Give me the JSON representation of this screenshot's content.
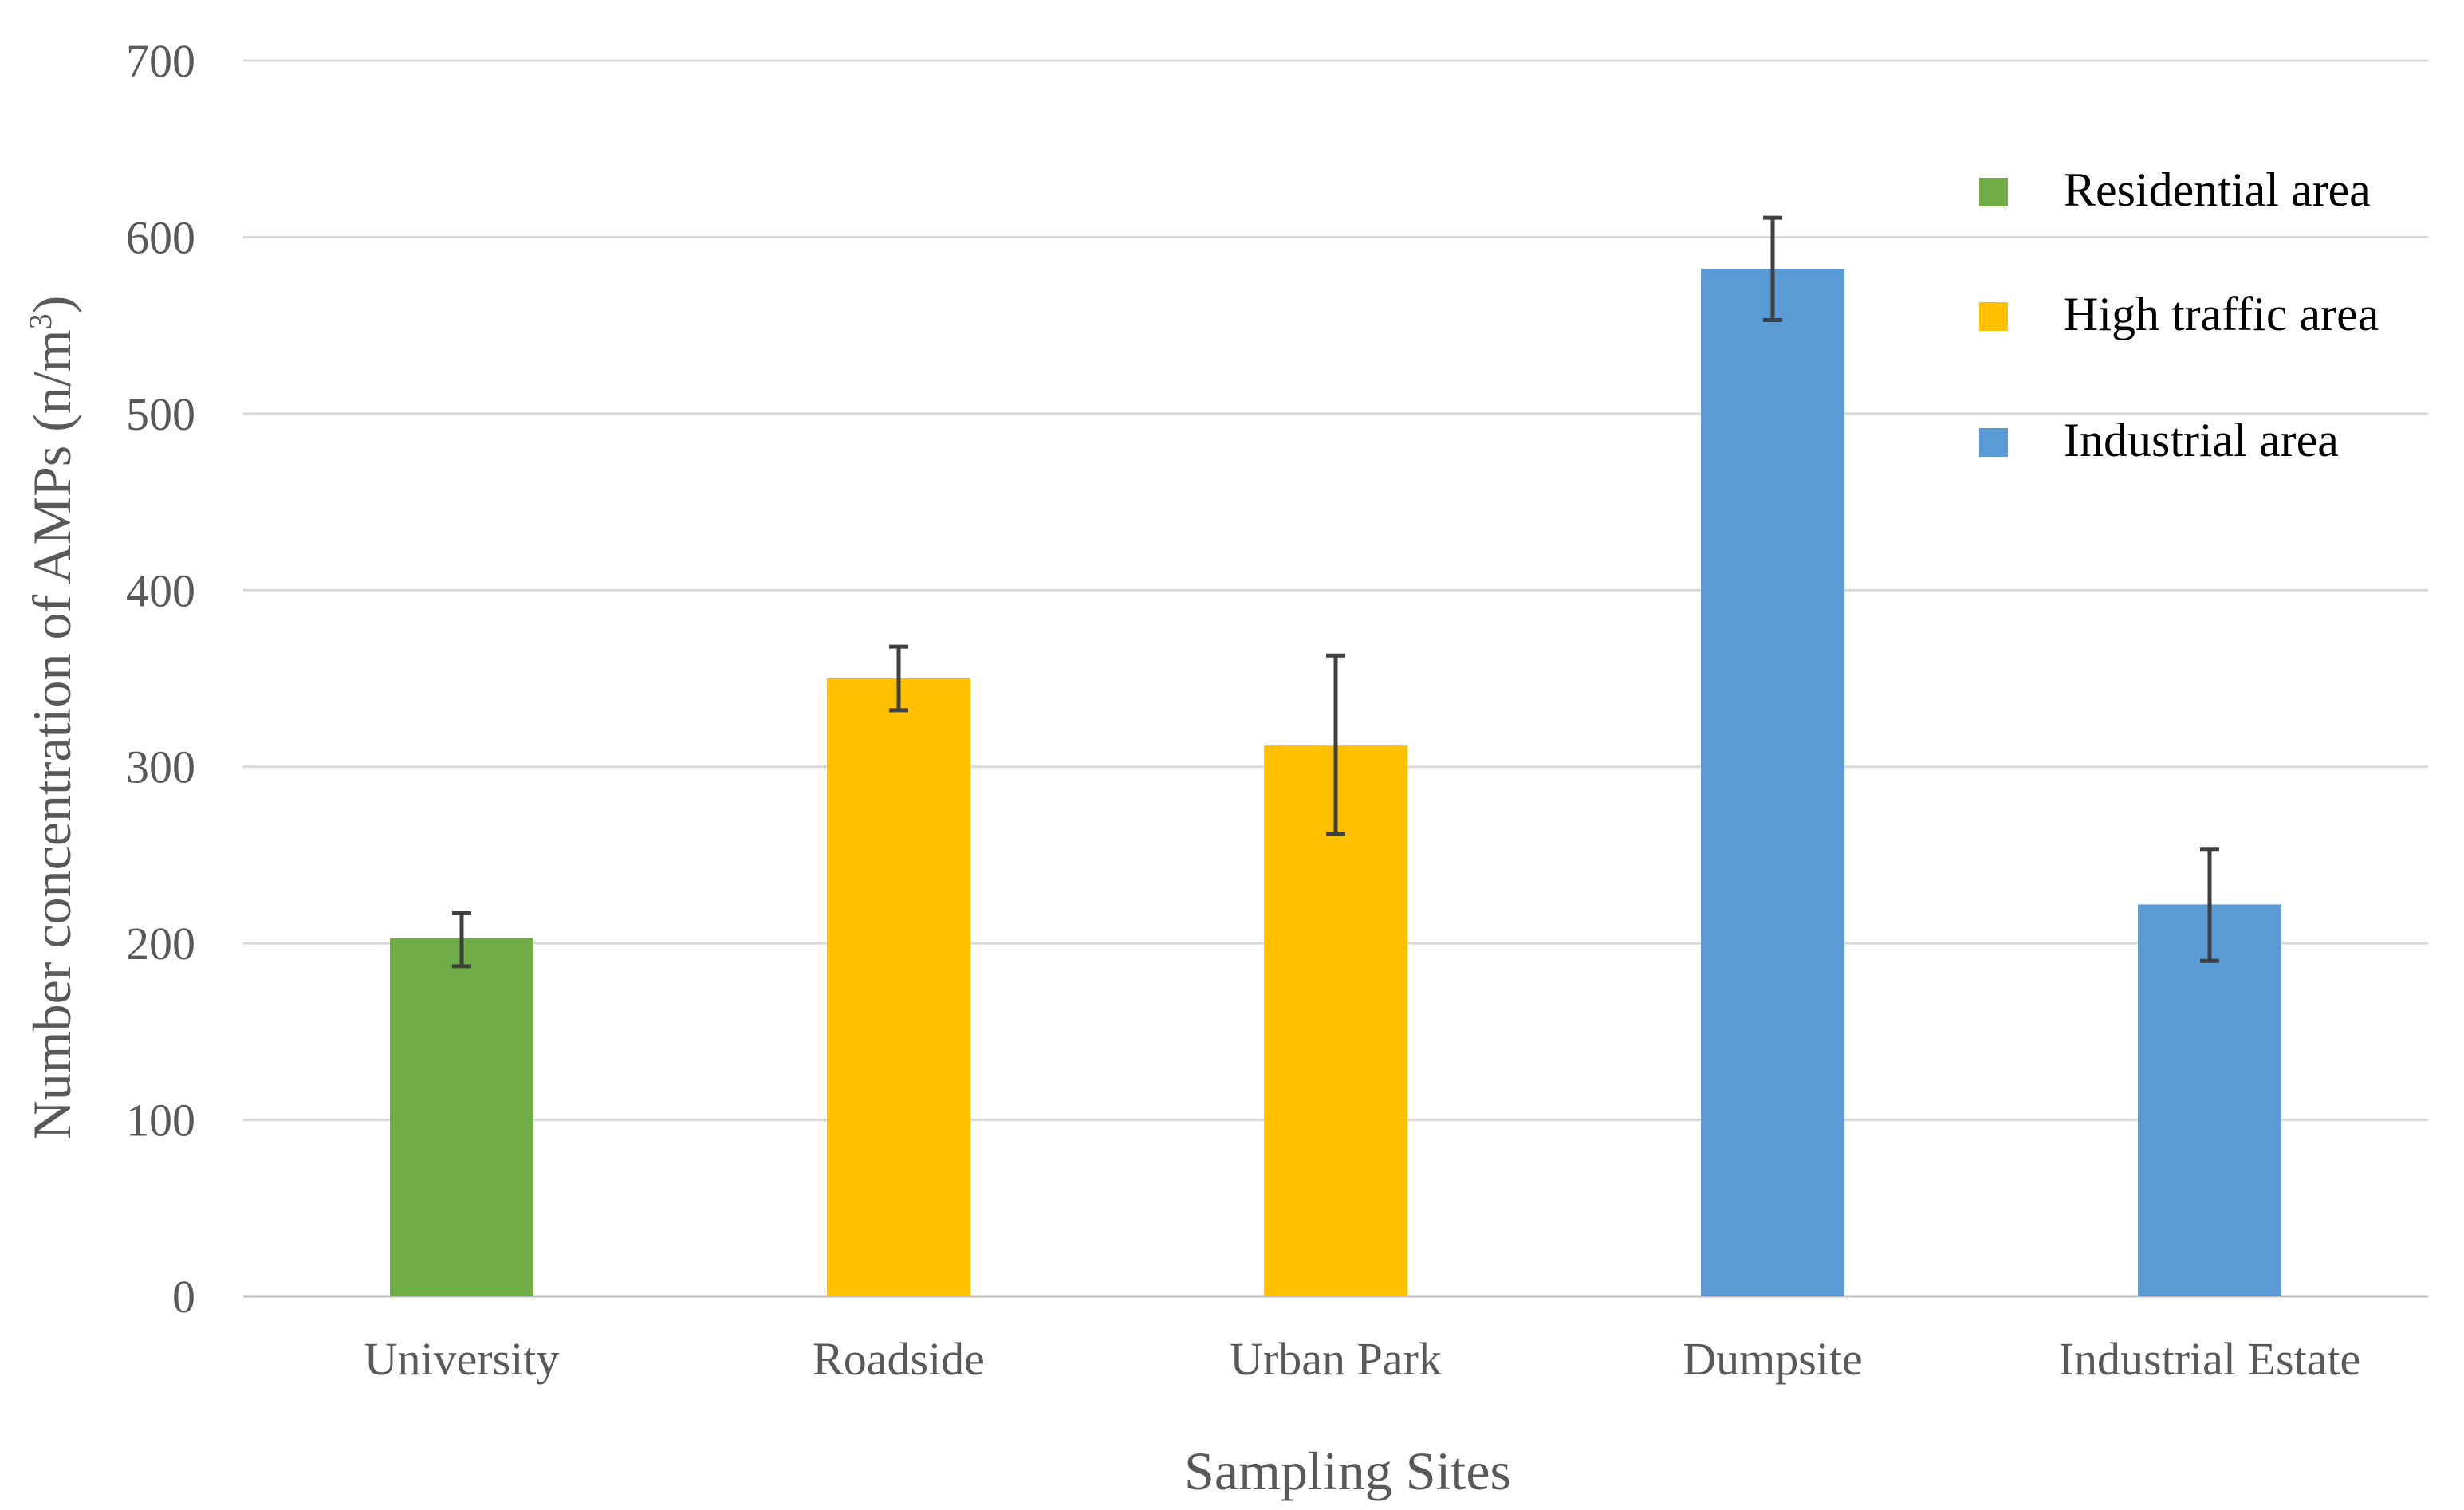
{
  "chart_data": {
    "type": "bar",
    "title": "",
    "xlabel": "Sampling  Sites",
    "ylabel": "Number concentration of AMPs (n/m",
    "ylabel_superscript": "3",
    "ylabel_suffix": ")",
    "ylim": [
      0,
      700
    ],
    "yticks": [
      0,
      100,
      200,
      300,
      400,
      500,
      600,
      700
    ],
    "grid": true,
    "categories": [
      "University",
      "Roadside",
      "Urban Park",
      "Dumpsite",
      "Industrial Estate"
    ],
    "values": [
      203,
      350,
      312,
      582,
      222
    ],
    "error_low": [
      187,
      332,
      262,
      553,
      190
    ],
    "error_high": [
      217,
      368,
      363,
      611,
      253
    ],
    "bar_groups": [
      "Residential area",
      "High traffic area",
      "High traffic area",
      "Industrial area",
      "Industrial area"
    ],
    "legend_position": "top-right",
    "legend": [
      {
        "label": "Residential area",
        "color": "#70ad47"
      },
      {
        "label": "High traffic area",
        "color": "#ffc000"
      },
      {
        "label": "Industrial area",
        "color": "#5b9bd5"
      }
    ]
  }
}
